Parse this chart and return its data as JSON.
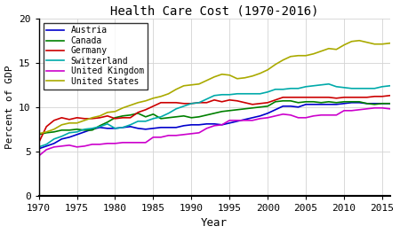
{
  "title": "Health Care Cost (1970-2016)",
  "xlabel": "Year",
  "ylabel": "Percent of GDP",
  "xlim": [
    1970,
    2016
  ],
  "ylim": [
    0,
    20
  ],
  "yticks": [
    0,
    5,
    10,
    15,
    20
  ],
  "xticks": [
    1970,
    1975,
    1980,
    1985,
    1990,
    1995,
    2000,
    2005,
    2010,
    2015
  ],
  "series": {
    "Austria": {
      "color": "#0000cc",
      "data": [
        5.3,
        5.6,
        5.9,
        6.4,
        6.6,
        6.9,
        7.2,
        7.5,
        7.7,
        7.6,
        7.6,
        7.7,
        7.8,
        7.6,
        7.5,
        7.6,
        7.7,
        7.7,
        7.7,
        7.9,
        8.0,
        8.0,
        8.1,
        8.1,
        8.0,
        8.2,
        8.4,
        8.6,
        8.8,
        9.0,
        9.3,
        9.7,
        10.1,
        10.1,
        10.0,
        10.3,
        10.3,
        10.3,
        10.3,
        10.3,
        10.4,
        10.5,
        10.5,
        10.4,
        10.4,
        10.4,
        10.4
      ]
    },
    "Canada": {
      "color": "#008000",
      "data": [
        6.9,
        7.1,
        7.2,
        7.4,
        7.4,
        7.5,
        7.4,
        7.4,
        7.9,
        8.3,
        8.8,
        9.0,
        9.1,
        9.3,
        8.9,
        9.2,
        8.7,
        8.8,
        8.9,
        9.0,
        8.8,
        8.9,
        9.1,
        9.3,
        9.5,
        9.6,
        9.7,
        9.8,
        9.9,
        10.0,
        10.1,
        10.6,
        10.7,
        10.7,
        10.5,
        10.6,
        10.6,
        10.5,
        10.6,
        10.5,
        10.6,
        10.6,
        10.6,
        10.4,
        10.3,
        10.4,
        10.4
      ]
    },
    "Germany": {
      "color": "#cc0000",
      "data": [
        6.0,
        7.8,
        8.5,
        8.8,
        8.6,
        8.8,
        8.7,
        8.7,
        8.8,
        9.0,
        8.7,
        8.8,
        8.8,
        9.4,
        9.7,
        10.1,
        10.5,
        10.5,
        10.5,
        10.4,
        10.4,
        10.5,
        10.5,
        10.8,
        10.6,
        10.8,
        10.7,
        10.5,
        10.3,
        10.4,
        10.5,
        10.8,
        11.1,
        11.1,
        11.1,
        11.1,
        11.1,
        11.1,
        11.1,
        11.0,
        11.1,
        11.1,
        11.1,
        11.1,
        11.2,
        11.2,
        11.3
      ]
    },
    "Switzerland": {
      "color": "#00aaaa",
      "data": [
        5.5,
        5.8,
        6.4,
        6.7,
        7.1,
        7.2,
        7.5,
        7.6,
        7.8,
        8.1,
        7.6,
        7.7,
        8.0,
        8.4,
        8.4,
        8.7,
        8.9,
        9.3,
        9.8,
        10.1,
        10.4,
        10.5,
        10.9,
        11.3,
        11.4,
        11.4,
        11.5,
        11.5,
        11.5,
        11.5,
        11.7,
        12.0,
        12.0,
        12.1,
        12.1,
        12.3,
        12.4,
        12.5,
        12.6,
        12.3,
        12.2,
        12.1,
        12.1,
        12.1,
        12.1,
        12.3,
        12.4
      ]
    },
    "United Kingdom": {
      "color": "#cc00cc",
      "data": [
        4.5,
        5.2,
        5.5,
        5.6,
        5.7,
        5.5,
        5.6,
        5.8,
        5.8,
        5.9,
        5.9,
        6.0,
        6.0,
        6.0,
        6.0,
        6.6,
        6.6,
        6.8,
        6.8,
        6.9,
        7.0,
        7.1,
        7.6,
        7.9,
        8.0,
        8.5,
        8.5,
        8.5,
        8.5,
        8.7,
        8.8,
        9.0,
        9.2,
        9.1,
        8.8,
        8.8,
        9.0,
        9.1,
        9.1,
        9.1,
        9.6,
        9.6,
        9.7,
        9.8,
        9.9,
        9.9,
        9.8
      ]
    },
    "United States": {
      "color": "#aaaa00",
      "data": [
        7.0,
        7.2,
        7.5,
        8.0,
        8.2,
        8.2,
        8.5,
        8.8,
        9.0,
        9.4,
        9.5,
        9.9,
        10.2,
        10.5,
        10.7,
        11.0,
        11.2,
        11.5,
        12.0,
        12.4,
        12.5,
        12.6,
        13.0,
        13.4,
        13.7,
        13.6,
        13.2,
        13.3,
        13.5,
        13.8,
        14.2,
        14.8,
        15.3,
        15.7,
        15.8,
        15.8,
        16.0,
        16.3,
        16.6,
        16.5,
        17.0,
        17.4,
        17.5,
        17.3,
        17.1,
        17.1,
        17.2
      ]
    }
  }
}
